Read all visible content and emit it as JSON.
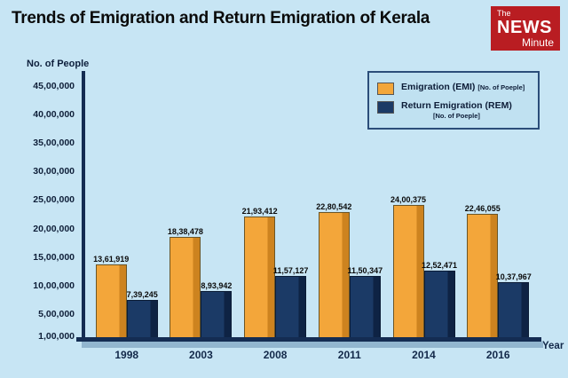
{
  "logo": {
    "line1": "The",
    "line2": "NEWS",
    "line3": "Minute"
  },
  "chart_data": {
    "type": "bar",
    "title": "Trends of Emigration and Return Emigration of Kerala",
    "ylabel": "No. of People",
    "xlabel": "Year",
    "categories": [
      "1998",
      "2003",
      "2008",
      "2011",
      "2014",
      "2016"
    ],
    "series": [
      {
        "name": "Emigration (EMI)",
        "note": "[No. of Poeple]",
        "color": "#f3a63a",
        "values": [
          1361919,
          1838478,
          2193412,
          2280542,
          2400375,
          2246055
        ],
        "labels": [
          "13,61,919",
          "18,38,478",
          "21,93,412",
          "22,80,542",
          "24,00,375",
          "22,46,055"
        ]
      },
      {
        "name": "Return Emigration (REM)",
        "note": "[No. of Poeple]",
        "color": "#1b3a66",
        "values": [
          739245,
          893942,
          1157127,
          1150347,
          1252471,
          1037967
        ],
        "labels": [
          "7,39,245",
          "8,93,942",
          "11,57,127",
          "11,50,347",
          "12,52,471",
          "10,37,967"
        ]
      }
    ],
    "y_ticks": [
      {
        "label": "45,00,000",
        "value": 4500000
      },
      {
        "label": "40,00,000",
        "value": 4000000
      },
      {
        "label": "35,00,000",
        "value": 3500000
      },
      {
        "label": "30,00,000",
        "value": 3000000
      },
      {
        "label": "25,00,000",
        "value": 2500000
      },
      {
        "label": "20,00,000",
        "value": 2000000
      },
      {
        "label": "15,00,000",
        "value": 1500000
      },
      {
        "label": "10,00,000",
        "value": 1000000
      },
      {
        "label": "5,00,000",
        "value": 500000
      },
      {
        "label": "1,00,000",
        "value": 100000
      }
    ],
    "ylim": [
      0,
      4500000
    ],
    "legend_position": "top-right",
    "grid": false
  }
}
